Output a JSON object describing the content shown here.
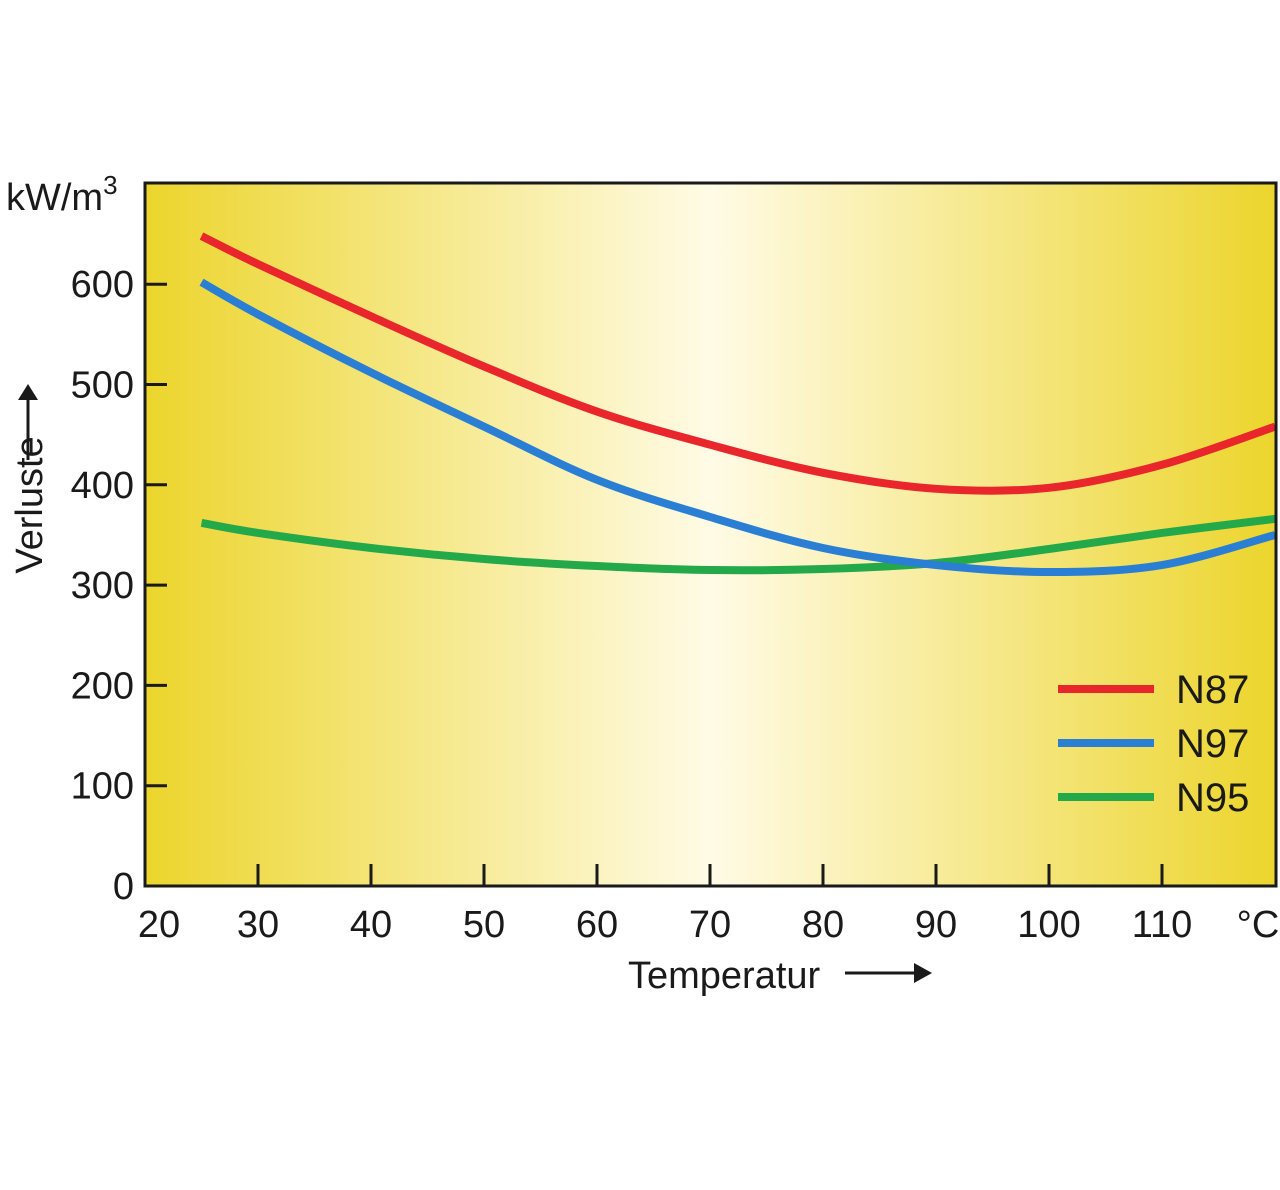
{
  "colors": {
    "background_edge": "#ecd52c",
    "background_center": "#fffbe6",
    "axis": "#1a1a1a",
    "N87": "#e8262b",
    "N97": "#2a7fd4",
    "N95": "#23a84a"
  },
  "chart_data": {
    "type": "line",
    "ylabel": "Verluste",
    "yunit": "kW/m",
    "yunit_sup": "3",
    "xlabel": "Temperatur",
    "xunit": "°C",
    "xlim": [
      20,
      120
    ],
    "ylim": [
      0,
      700
    ],
    "xticks": [
      "20",
      "30",
      "40",
      "50",
      "60",
      "70",
      "80",
      "90",
      "100",
      "110"
    ],
    "xtick_values": [
      20,
      30,
      40,
      50,
      60,
      70,
      80,
      90,
      100,
      110
    ],
    "yticks": [
      "0",
      "100",
      "200",
      "300",
      "400",
      "500",
      "600"
    ],
    "ytick_values": [
      0,
      100,
      200,
      300,
      400,
      500,
      600
    ],
    "grid": false,
    "legend_position": "bottom-right",
    "series": [
      {
        "name": "N87",
        "color_key": "N87",
        "x": [
          25,
          30,
          40,
          50,
          60,
          70,
          80,
          90,
          100,
          110,
          120
        ],
        "y": [
          648,
          620,
          568,
          518,
          473,
          440,
          412,
          396,
          397,
          420,
          458
        ]
      },
      {
        "name": "N97",
        "color_key": "N97",
        "x": [
          25,
          30,
          40,
          50,
          60,
          70,
          80,
          90,
          100,
          110,
          120
        ],
        "y": [
          602,
          570,
          512,
          458,
          405,
          368,
          337,
          320,
          313,
          320,
          350
        ]
      },
      {
        "name": "N95",
        "color_key": "N95",
        "x": [
          25,
          30,
          40,
          50,
          60,
          70,
          80,
          90,
          100,
          110,
          120
        ],
        "y": [
          362,
          352,
          337,
          326,
          319,
          315,
          316,
          322,
          336,
          352,
          366
        ]
      }
    ]
  }
}
